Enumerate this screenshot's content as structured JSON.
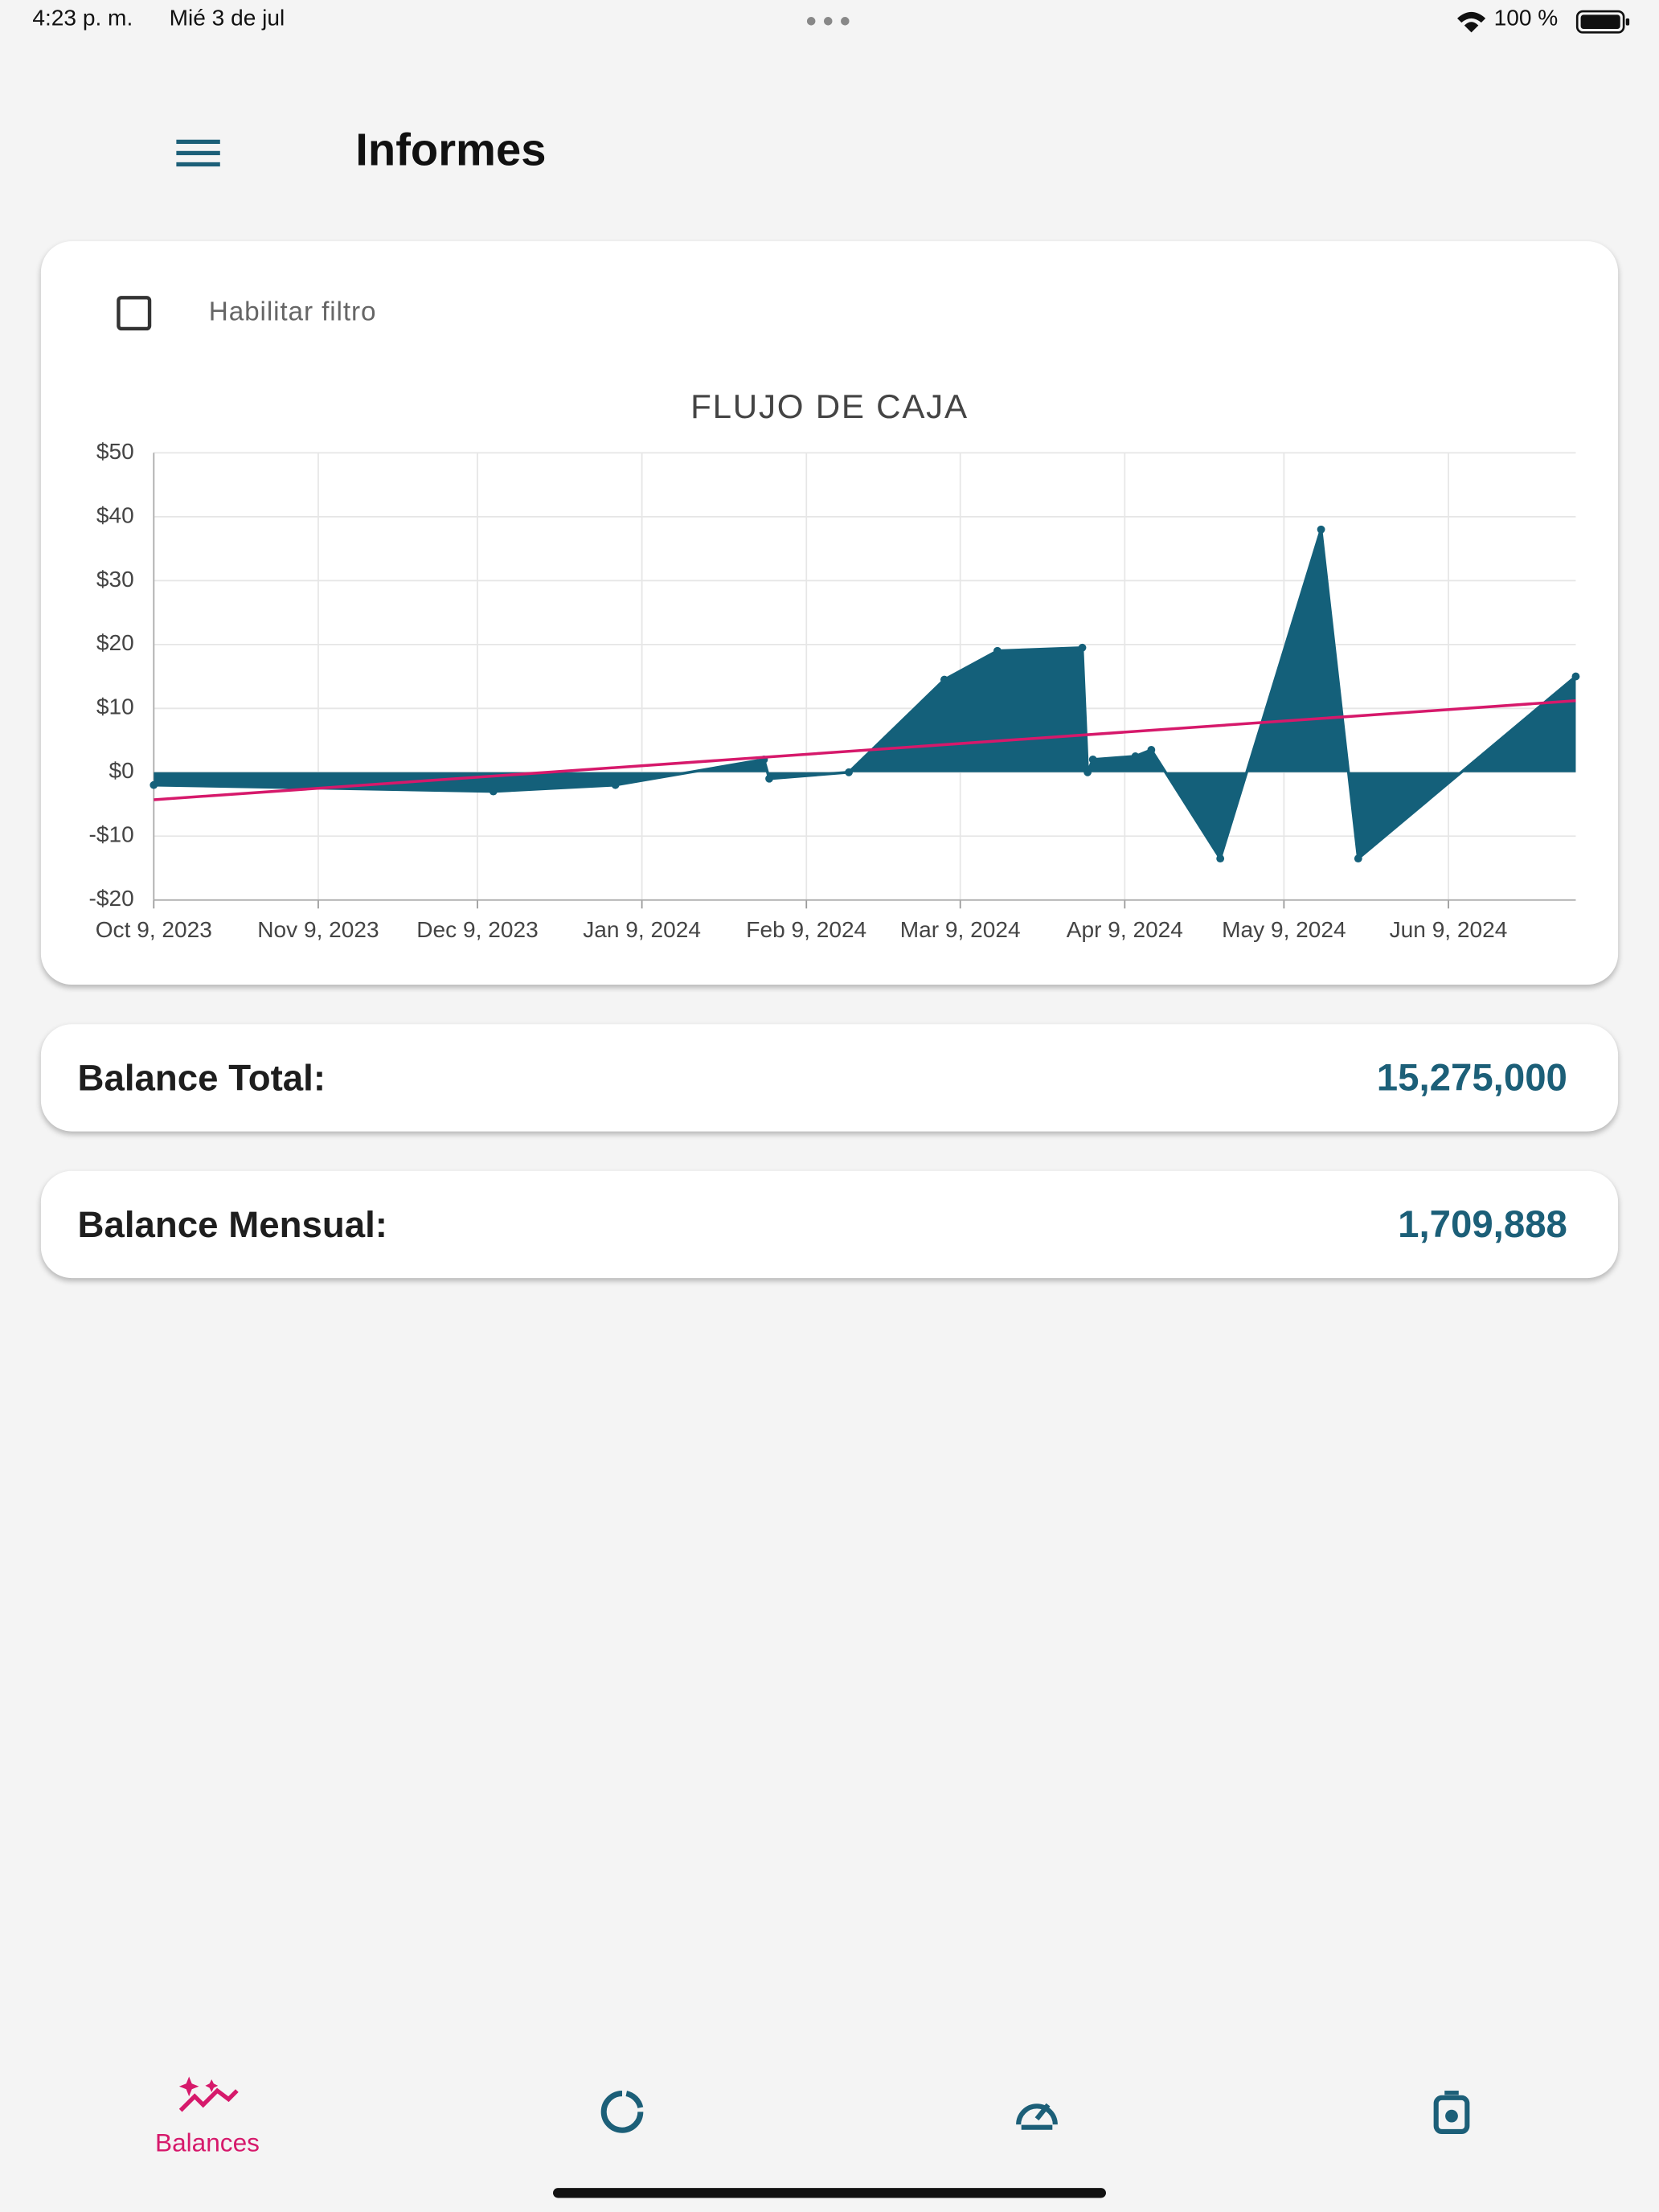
{
  "status_bar": {
    "time": "4:23 p. m.",
    "date": "Mié 3 de jul",
    "battery": "100 %"
  },
  "header": {
    "title": "Informes"
  },
  "filter": {
    "label": "Habilitar filtro"
  },
  "chart_data": {
    "type": "area",
    "title": "FLUJO DE CAJA",
    "x": [
      "2023-10-09",
      "2023-12-12",
      "2024-01-04",
      "2024-02-01",
      "2024-02-02",
      "2024-02-17",
      "2024-03-06",
      "2024-03-16",
      "2024-04-01",
      "2024-04-02",
      "2024-04-03",
      "2024-04-11",
      "2024-04-14",
      "2024-04-27",
      "2024-05-16",
      "2024-05-23",
      "2024-07-03"
    ],
    "series": [
      {
        "color": "#14607a",
        "values": [
          -2,
          -3,
          -2,
          2,
          -1,
          0,
          14.5,
          19,
          19.5,
          0,
          2,
          2.5,
          3.5,
          -13.5,
          38,
          -13.5,
          15
        ]
      }
    ],
    "trend": {
      "color": "#d6196b",
      "x": [
        "2023-10-09",
        "2024-07-03"
      ],
      "values": [
        -4.3,
        11.2
      ]
    },
    "xlim": [
      "2023-10-09",
      "2024-07-03"
    ],
    "xticks": [
      {
        "value": "2023-10-09",
        "label": "Oct 9, 2023"
      },
      {
        "value": "2023-11-09",
        "label": "Nov 9, 2023"
      },
      {
        "value": "2023-12-09",
        "label": "Dec 9, 2023"
      },
      {
        "value": "2024-01-09",
        "label": "Jan 9, 2024"
      },
      {
        "value": "2024-02-09",
        "label": "Feb 9, 2024"
      },
      {
        "value": "2024-03-09",
        "label": "Mar 9, 2024"
      },
      {
        "value": "2024-04-09",
        "label": "Apr 9, 2024"
      },
      {
        "value": "2024-05-09",
        "label": "May 9, 2024"
      },
      {
        "value": "2024-06-09",
        "label": "Jun 9, 2024"
      }
    ],
    "ylim": [
      -20,
      50
    ],
    "yticks": [
      {
        "value": -20,
        "label": "-$20"
      },
      {
        "value": -10,
        "label": "-$10"
      },
      {
        "value": 0,
        "label": "$0"
      },
      {
        "value": 10,
        "label": "$10"
      },
      {
        "value": 20,
        "label": "$20"
      },
      {
        "value": 30,
        "label": "$30"
      },
      {
        "value": 40,
        "label": "$40"
      },
      {
        "value": 50,
        "label": "$50"
      }
    ],
    "grid": true
  },
  "balances": [
    {
      "label": "Balance Total:",
      "value": "15,275,000"
    },
    {
      "label": "Balance Mensual:",
      "value": "1,709,888"
    }
  ],
  "nav": {
    "items": [
      {
        "label": "Balances"
      }
    ]
  }
}
